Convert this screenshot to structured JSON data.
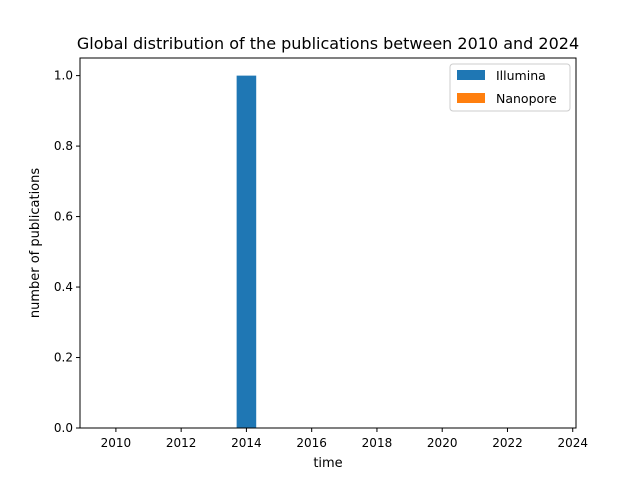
{
  "chart_data": {
    "type": "bar",
    "title": "Global distribution of the publications between 2010 and 2024",
    "xlabel": "time",
    "ylabel": "number of publications",
    "xlim": [
      2008.9,
      2024.1
    ],
    "ylim": [
      0,
      1.05
    ],
    "x_ticks": [
      2010,
      2012,
      2014,
      2016,
      2018,
      2020,
      2022,
      2024
    ],
    "y_ticks": [
      0.0,
      0.2,
      0.4,
      0.6,
      0.8,
      1.0
    ],
    "y_tick_labels": [
      "0.0",
      "0.2",
      "0.4",
      "0.6",
      "0.8",
      "1.0"
    ],
    "grid": false,
    "legend_position": "top-right",
    "series": [
      {
        "name": "Illumina",
        "color": "#1f77b4",
        "bars": [
          {
            "x_start": 2013.7,
            "x_end": 2014.3,
            "value": 1.0
          }
        ]
      },
      {
        "name": "Nanopore",
        "color": "#ff7f0e",
        "bars": []
      }
    ]
  }
}
